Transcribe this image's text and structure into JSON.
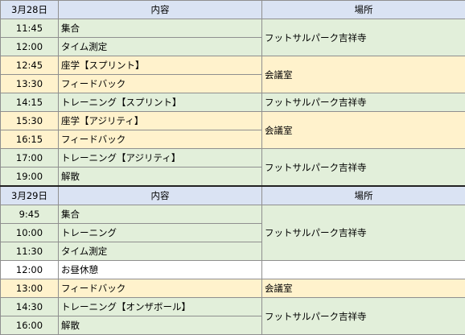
{
  "days": [
    {
      "date": "3月28日",
      "header": {
        "content": "内容",
        "place": "場所"
      },
      "rows": [
        {
          "time": "11:45",
          "content": "集合",
          "place": "フットサルパーク吉祥寺",
          "span": 2,
          "bg": "green"
        },
        {
          "time": "12:00",
          "content": "タイム測定",
          "bg": "green"
        },
        {
          "time": "12:45",
          "content": "座学【スプリント】",
          "place": "会議室",
          "span": 2,
          "bg": "yellow"
        },
        {
          "time": "13:30",
          "content": "フィードバック",
          "bg": "yellow"
        },
        {
          "time": "14:15",
          "content": "トレーニング【スプリント】",
          "place": "フットサルパーク吉祥寺",
          "span": 1,
          "bg": "green"
        },
        {
          "time": "15:30",
          "content": "座学【アジリティ】",
          "place": "会議室",
          "span": 2,
          "bg": "yellow"
        },
        {
          "time": "16:15",
          "content": "フィードバック",
          "bg": "yellow"
        },
        {
          "time": "17:00",
          "content": "トレーニング【アジリティ】",
          "place": "フットサルパーク吉祥寺",
          "span": 2,
          "bg": "green"
        },
        {
          "time": "19:00",
          "content": "解散",
          "bg": "green"
        }
      ]
    },
    {
      "date": "3月29日",
      "header": {
        "content": "内容",
        "place": "場所"
      },
      "rows": [
        {
          "time": "9:45",
          "content": "集合",
          "place": "フットサルパーク吉祥寺",
          "span": 3,
          "bg": "green"
        },
        {
          "time": "10:00",
          "content": "トレーニング",
          "bg": "green"
        },
        {
          "time": "11:30",
          "content": "タイム測定",
          "bg": "green"
        },
        {
          "time": "12:00",
          "content": "お昼休憩",
          "place": "",
          "span": 1,
          "bg": "white"
        },
        {
          "time": "13:00",
          "content": "フィードバック",
          "place": "会議室",
          "span": 1,
          "bg": "yellow"
        },
        {
          "time": "14:30",
          "content": "トレーニング【オンザボール】",
          "place": "フットサルパーク吉祥寺",
          "span": 2,
          "bg": "green"
        },
        {
          "time": "16:00",
          "content": "解散",
          "bg": "green"
        }
      ]
    }
  ]
}
